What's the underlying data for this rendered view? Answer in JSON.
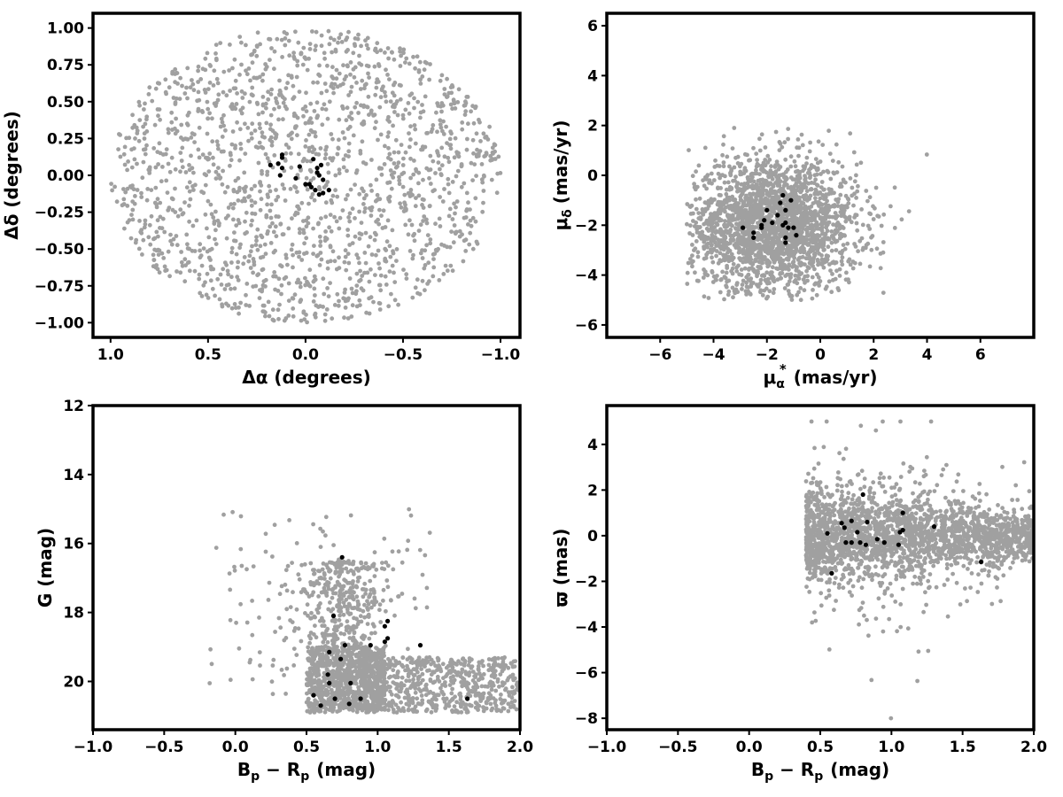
{
  "colors": {
    "field": "#a0a0a0",
    "members": "#000000",
    "frame": "#000000",
    "background": "#ffffff"
  },
  "chart_data": [
    {
      "type": "scatter",
      "xlabel": "Δα (degrees)",
      "ylabel": "Δδ (degrees)",
      "xlim": [
        1.09,
        -1.1
      ],
      "ylim": [
        -1.1,
        1.1
      ],
      "x_inverted": true,
      "xticks": [
        1.0,
        0.5,
        0.0,
        -0.5,
        -1.0
      ],
      "xtick_labels": [
        "1.0",
        "0.5",
        "0.0",
        "−0.5",
        "−1.0"
      ],
      "yticks": [
        -1.0,
        -0.75,
        -0.5,
        -0.25,
        0.0,
        0.25,
        0.5,
        0.75,
        1.0
      ],
      "ytick_labels": [
        "−1.00",
        "−0.75",
        "−0.50",
        "−0.25",
        "0.00",
        "0.25",
        "0.50",
        "0.75",
        "1.00"
      ],
      "grid": false,
      "legend": "none",
      "series": [
        {
          "role": "field",
          "color": "#a0a0a0",
          "count": 1700,
          "distribution": {
            "kind": "disk",
            "cx": 0.0,
            "cy": 0.0,
            "r": 1.0
          }
        },
        {
          "role": "members",
          "color": "#000000",
          "points": [
            [
              0.18,
              0.07
            ],
            [
              0.14,
              0.08
            ],
            [
              0.12,
              0.14
            ],
            [
              0.12,
              0.12
            ],
            [
              0.13,
              0.0
            ],
            [
              0.12,
              0.05
            ],
            [
              0.05,
              -0.02
            ],
            [
              0.03,
              0.06
            ],
            [
              -0.04,
              0.11
            ],
            [
              -0.06,
              0.05
            ],
            [
              -0.08,
              0.07
            ],
            [
              -0.07,
              0.0
            ],
            [
              -0.09,
              -0.03
            ],
            [
              -0.02,
              -0.06
            ],
            [
              0.0,
              -0.06
            ],
            [
              -0.05,
              -0.1
            ],
            [
              -0.07,
              -0.13
            ],
            [
              -0.09,
              -0.12
            ],
            [
              -0.12,
              -0.1
            ],
            [
              -0.03,
              -0.08
            ],
            [
              -0.06,
              0.02
            ]
          ]
        }
      ]
    },
    {
      "type": "scatter",
      "xlabel_main": "μ",
      "xlabel_sub": "α",
      "xlabel_sup": "*",
      "xlabel_unit": "(mas/yr)",
      "ylabel_main": "μ",
      "ylabel_sub": "δ",
      "ylabel_unit": "(mas/yr)",
      "xlim": [
        -8.0,
        8.0
      ],
      "ylim": [
        -6.5,
        6.5
      ],
      "xticks": [
        -6,
        -4,
        -2,
        0,
        2,
        4,
        6
      ],
      "xtick_labels": [
        "−6",
        "−4",
        "−2",
        "0",
        "2",
        "4",
        "6"
      ],
      "yticks": [
        -6,
        -4,
        -2,
        0,
        2,
        4,
        6
      ],
      "ytick_labels": [
        "−6",
        "−4",
        "−2",
        "0",
        "2",
        "4",
        "6"
      ],
      "grid": false,
      "legend": "none",
      "series": [
        {
          "role": "field",
          "color": "#a0a0a0",
          "count": 2300,
          "distribution": {
            "kind": "gaussian",
            "mx": -1.8,
            "my": -2.0,
            "sx": 1.6,
            "sy": 1.3,
            "xrange": [
              -5.0,
              4.7
            ],
            "yrange": [
              -5.0,
              4.9
            ]
          }
        },
        {
          "role": "members",
          "color": "#000000",
          "points": [
            [
              -2.9,
              -2.1
            ],
            [
              -2.5,
              -2.3
            ],
            [
              -2.5,
              -2.5
            ],
            [
              -2.2,
              -2.1
            ],
            [
              -2.1,
              -1.8
            ],
            [
              -2.0,
              -1.4
            ],
            [
              -1.8,
              -1.9
            ],
            [
              -1.6,
              -1.6
            ],
            [
              -1.5,
              -1.1
            ],
            [
              -1.4,
              -0.8
            ],
            [
              -1.3,
              -1.4
            ],
            [
              -1.3,
              -1.9
            ],
            [
              -1.2,
              -2.1
            ],
            [
              -1.3,
              -2.5
            ],
            [
              -1.3,
              -2.7
            ],
            [
              -1.1,
              -1.0
            ],
            [
              -1.0,
              -2.1
            ],
            [
              -0.9,
              -2.4
            ],
            [
              -2.2,
              -2.0
            ],
            [
              -1.4,
              -2.0
            ]
          ]
        }
      ]
    },
    {
      "type": "scatter",
      "xlabel_main": "B",
      "xlabel_sub1": "p",
      "xlabel_mid": " − R",
      "xlabel_sub2": "p",
      "xlabel_unit": "(mag)",
      "ylabel": "G (mag)",
      "xlim": [
        -1.0,
        2.0
      ],
      "ylim": [
        12.0,
        21.4
      ],
      "y_inverted": true,
      "xticks": [
        -1.0,
        -0.5,
        0.0,
        0.5,
        1.0,
        1.5,
        2.0
      ],
      "xtick_labels": [
        "−1.0",
        "−0.5",
        "0.0",
        "0.5",
        "1.0",
        "1.5",
        "2.0"
      ],
      "yticks": [
        12,
        14,
        16,
        18,
        20
      ],
      "ytick_labels": [
        "12",
        "14",
        "16",
        "18",
        "20"
      ],
      "grid": false,
      "legend": "none",
      "series": [
        {
          "role": "field",
          "color": "#a0a0a0",
          "count": 2000,
          "distribution": {
            "kind": "cmd"
          }
        },
        {
          "role": "members",
          "color": "#000000",
          "points": [
            [
              0.55,
              20.4
            ],
            [
              0.6,
              20.7
            ],
            [
              0.65,
              19.8
            ],
            [
              0.66,
              20.05
            ],
            [
              0.7,
              20.5
            ],
            [
              0.8,
              20.65
            ],
            [
              0.81,
              20.05
            ],
            [
              0.88,
              20.5
            ],
            [
              0.66,
              19.15
            ],
            [
              0.74,
              19.35
            ],
            [
              0.77,
              18.95
            ],
            [
              0.95,
              18.95
            ],
            [
              1.05,
              18.85
            ],
            [
              1.07,
              18.75
            ],
            [
              1.05,
              18.4
            ],
            [
              1.07,
              18.25
            ],
            [
              0.69,
              18.1
            ],
            [
              1.3,
              18.95
            ],
            [
              1.63,
              20.5
            ],
            [
              0.75,
              16.4
            ]
          ]
        }
      ]
    },
    {
      "type": "scatter",
      "xlabel_main": "B",
      "xlabel_sub1": "p",
      "xlabel_mid": " − R",
      "xlabel_sub2": "p",
      "xlabel_unit": "(mag)",
      "ylabel": "ϖ (mas)",
      "xlim": [
        -1.0,
        2.0
      ],
      "ylim": [
        -8.5,
        5.7
      ],
      "xticks": [
        -1.0,
        -0.5,
        0.0,
        0.5,
        1.0,
        1.5,
        2.0
      ],
      "xtick_labels": [
        "−1.0",
        "−0.5",
        "0.0",
        "0.5",
        "1.0",
        "1.5",
        "2.0"
      ],
      "yticks": [
        -8,
        -6,
        -4,
        -2,
        0,
        2,
        4
      ],
      "ytick_labels": [
        "−8",
        "−6",
        "−4",
        "−2",
        "0",
        "2",
        "4"
      ],
      "grid": false,
      "legend": "none",
      "series": [
        {
          "role": "field",
          "color": "#a0a0a0",
          "count": 2300,
          "distribution": {
            "kind": "plx"
          }
        },
        {
          "role": "members",
          "color": "#000000",
          "points": [
            [
              0.55,
              0.1
            ],
            [
              0.58,
              -1.65
            ],
            [
              0.65,
              0.55
            ],
            [
              0.67,
              0.35
            ],
            [
              0.68,
              -0.3
            ],
            [
              0.72,
              0.65
            ],
            [
              0.72,
              -0.3
            ],
            [
              0.76,
              0.15
            ],
            [
              0.78,
              -0.3
            ],
            [
              0.8,
              1.8
            ],
            [
              0.82,
              -0.4
            ],
            [
              0.83,
              0.6
            ],
            [
              0.9,
              -0.15
            ],
            [
              0.95,
              -0.3
            ],
            [
              1.05,
              -0.4
            ],
            [
              1.06,
              0.15
            ],
            [
              1.08,
              0.25
            ],
            [
              1.08,
              1.0
            ],
            [
              1.3,
              0.4
            ],
            [
              1.63,
              -1.15
            ]
          ]
        }
      ]
    }
  ]
}
